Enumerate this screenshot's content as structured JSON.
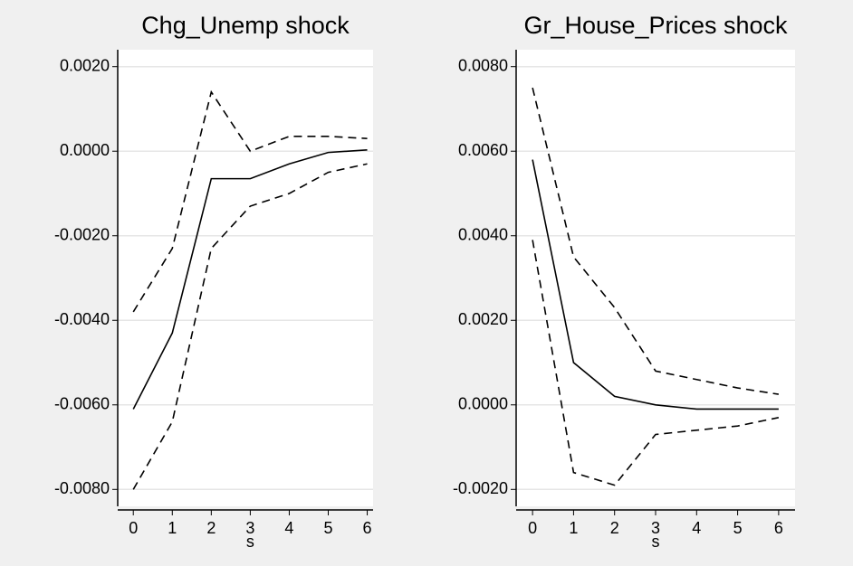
{
  "chart_data": [
    {
      "type": "line",
      "title": "Chg_Unemp shock",
      "xlabel": "s",
      "x": [
        0,
        1,
        2,
        3,
        4,
        5,
        6
      ],
      "series": [
        {
          "color": "#000000",
          "style": "solid",
          "values": [
            -0.0061,
            -0.0043,
            -0.00065,
            -0.00065,
            -0.0003,
            -3e-05,
            3e-05
          ]
        },
        {
          "color": "#000000",
          "style": "dashed",
          "values": [
            -0.0038,
            -0.0023,
            0.0014,
            0.0,
            0.00035,
            0.00035,
            0.0003
          ]
        },
        {
          "color": "#000000",
          "style": "dashed",
          "values": [
            -0.008,
            -0.0064,
            -0.0023,
            -0.0013,
            -0.001,
            -0.0005,
            -0.0003
          ]
        }
      ],
      "xlim": [
        -0.4,
        6.15
      ],
      "xticks": [
        0,
        1,
        2,
        3,
        4,
        5,
        6
      ],
      "ylim": [
        -0.0084,
        0.0024
      ],
      "yticks": [
        {
          "value": -0.008,
          "label": "-0.0080"
        },
        {
          "value": -0.006,
          "label": "-0.0060"
        },
        {
          "value": -0.004,
          "label": "-0.0040"
        },
        {
          "value": -0.002,
          "label": "-0.0020"
        },
        {
          "value": 0,
          "label": "0.0000"
        },
        {
          "value": 0.002,
          "label": "0.0020"
        }
      ],
      "grid": true
    },
    {
      "type": "line",
      "title": "Gr_House_Prices shock",
      "xlabel": "s",
      "x": [
        0,
        1,
        2,
        3,
        4,
        5,
        6
      ],
      "series": [
        {
          "color": "#000000",
          "style": "solid",
          "values": [
            0.0058,
            0.001,
            0.0002,
            0.0,
            -0.0001,
            -0.0001,
            -0.0001
          ]
        },
        {
          "color": "#000000",
          "style": "dashed",
          "values": [
            0.0075,
            0.0035,
            0.0023,
            0.0008,
            0.0006,
            0.0004,
            0.00025
          ]
        },
        {
          "color": "#000000",
          "style": "dashed",
          "values": [
            0.0039,
            -0.0016,
            -0.0019,
            -0.0007,
            -0.0006,
            -0.0005,
            -0.0003
          ]
        }
      ],
      "xlim": [
        -0.4,
        6.4
      ],
      "xticks": [
        0,
        1,
        2,
        3,
        4,
        5,
        6
      ],
      "ylim": [
        -0.0024,
        0.0084
      ],
      "yticks": [
        {
          "value": -0.002,
          "label": "-0.0020"
        },
        {
          "value": 0,
          "label": "0.0000"
        },
        {
          "value": 0.002,
          "label": "0.0020"
        },
        {
          "value": 0.004,
          "label": "0.0040"
        },
        {
          "value": 0.006,
          "label": "0.0060"
        },
        {
          "value": 0.008,
          "label": "0.0080"
        }
      ],
      "grid": true
    }
  ]
}
